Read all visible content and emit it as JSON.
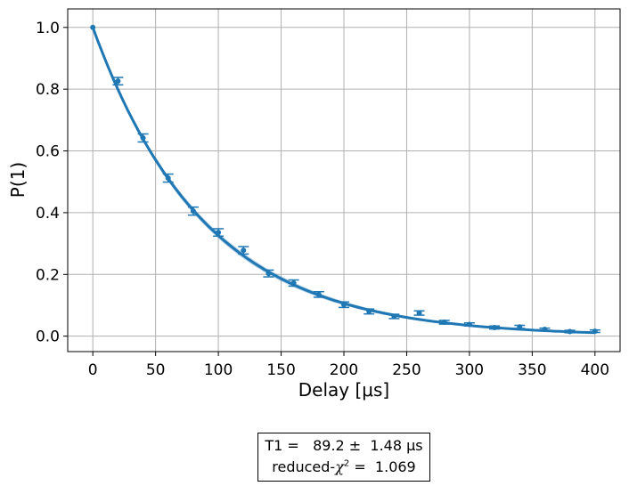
{
  "chart_data": {
    "type": "scatter",
    "xlabel": "Delay [μs]",
    "ylabel": "P(1)",
    "xlim": [
      -20,
      420
    ],
    "ylim": [
      -0.05,
      1.06
    ],
    "x_ticks": [
      0,
      50,
      100,
      150,
      200,
      250,
      300,
      350,
      400
    ],
    "y_ticks": [
      0.0,
      0.2,
      0.4,
      0.6,
      0.8,
      1.0
    ],
    "y_tick_labels": [
      "0.0",
      "0.2",
      "0.4",
      "0.6",
      "0.8",
      "1.0"
    ],
    "grid": true,
    "color": "#1f77b4",
    "data": {
      "x": [
        0,
        20,
        40,
        60,
        80,
        100,
        120,
        140,
        160,
        180,
        200,
        220,
        240,
        260,
        280,
        300,
        320,
        340,
        360,
        380,
        400
      ],
      "y": [
        1.0,
        0.826,
        0.642,
        0.512,
        0.405,
        0.336,
        0.278,
        0.203,
        0.172,
        0.135,
        0.102,
        0.08,
        0.064,
        0.075,
        0.045,
        0.038,
        0.028,
        0.03,
        0.022,
        0.015,
        0.016
      ],
      "err": [
        0.0,
        0.012,
        0.013,
        0.013,
        0.013,
        0.012,
        0.012,
        0.011,
        0.01,
        0.009,
        0.009,
        0.008,
        0.007,
        0.007,
        0.006,
        0.005,
        0.005,
        0.005,
        0.004,
        0.004,
        0.004
      ]
    },
    "fit": {
      "model": "exponential decay",
      "T1": 89.2,
      "amplitude": 1.0
    },
    "fit_box": {
      "line1": "T1 =   89.2 ±  1.48 μs",
      "line2_prefix": "reduced-",
      "line2_symbol": "χ",
      "line2_exp": "2",
      "line2_suffix": " =  1.069"
    }
  }
}
